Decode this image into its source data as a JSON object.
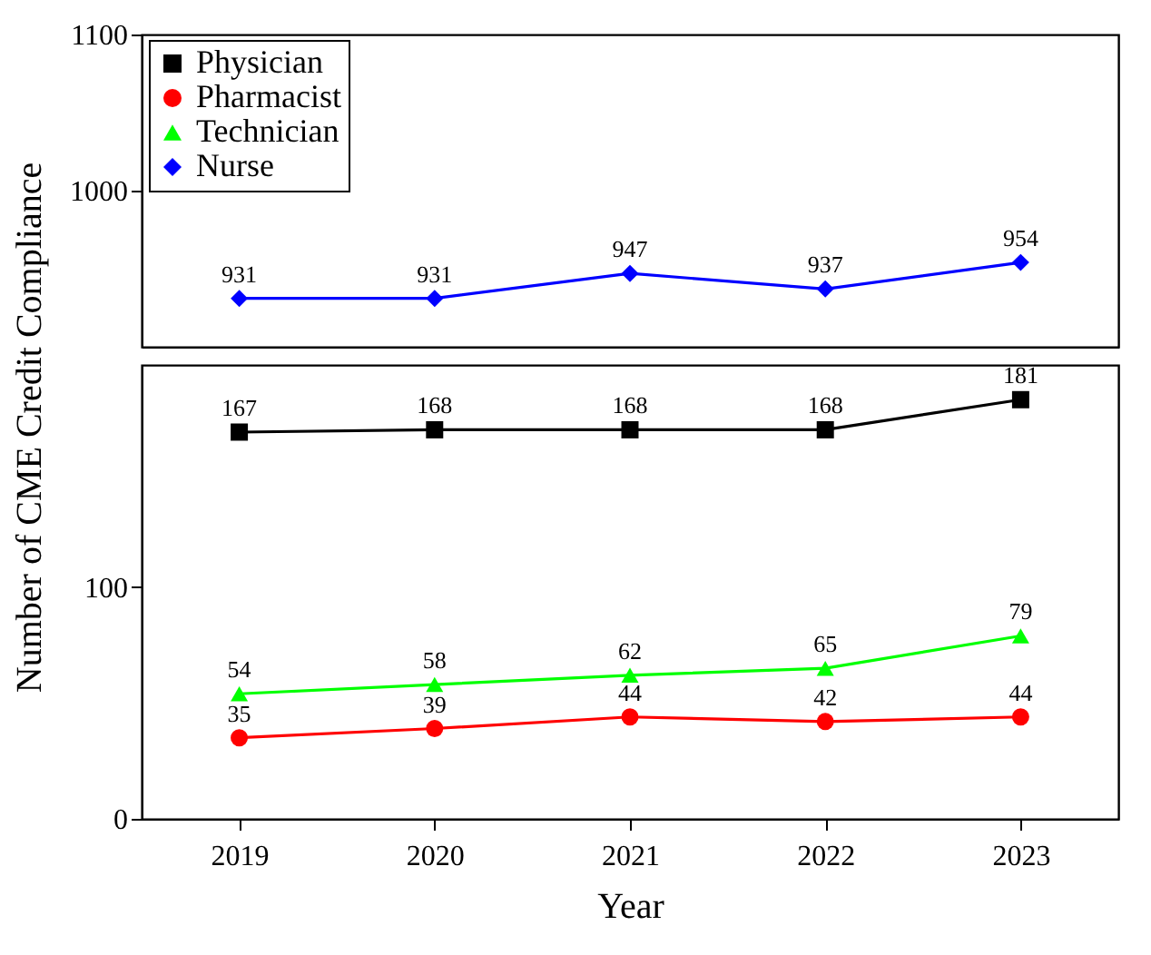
{
  "chart_data": [
    {
      "type": "line",
      "categories": [
        "2019",
        "2020",
        "2021",
        "2022",
        "2023"
      ],
      "ylabel": "Number of CME Credit Compliance",
      "ylim": [
        900,
        1100
      ],
      "yticks": [
        1000,
        1100
      ],
      "tick_labels": "y",
      "data_labels": true,
      "legend": "top left",
      "series": [
        {
          "name": "Nurse",
          "color": "#0000ff",
          "marker": "diamond",
          "values": [
            931,
            931,
            947,
            937,
            954
          ]
        }
      ]
    },
    {
      "type": "line",
      "categories": [
        "2019",
        "2020",
        "2021",
        "2022",
        "2023"
      ],
      "xlabel": "Year",
      "ylim": [
        0,
        196
      ],
      "yticks": [
        0,
        100
      ],
      "data_labels": true,
      "legend": "top left",
      "series": [
        {
          "name": "Physician",
          "color": "#000000",
          "marker": "square",
          "values": [
            167,
            168,
            168,
            168,
            181
          ]
        },
        {
          "name": "Pharmacist",
          "color": "#ff0000",
          "marker": "circle",
          "values": [
            35,
            39,
            44,
            42,
            44
          ]
        },
        {
          "name": "Technician",
          "color": "#00ff00",
          "marker": "triangle",
          "values": [
            54,
            58,
            62,
            65,
            79
          ]
        }
      ]
    }
  ]
}
